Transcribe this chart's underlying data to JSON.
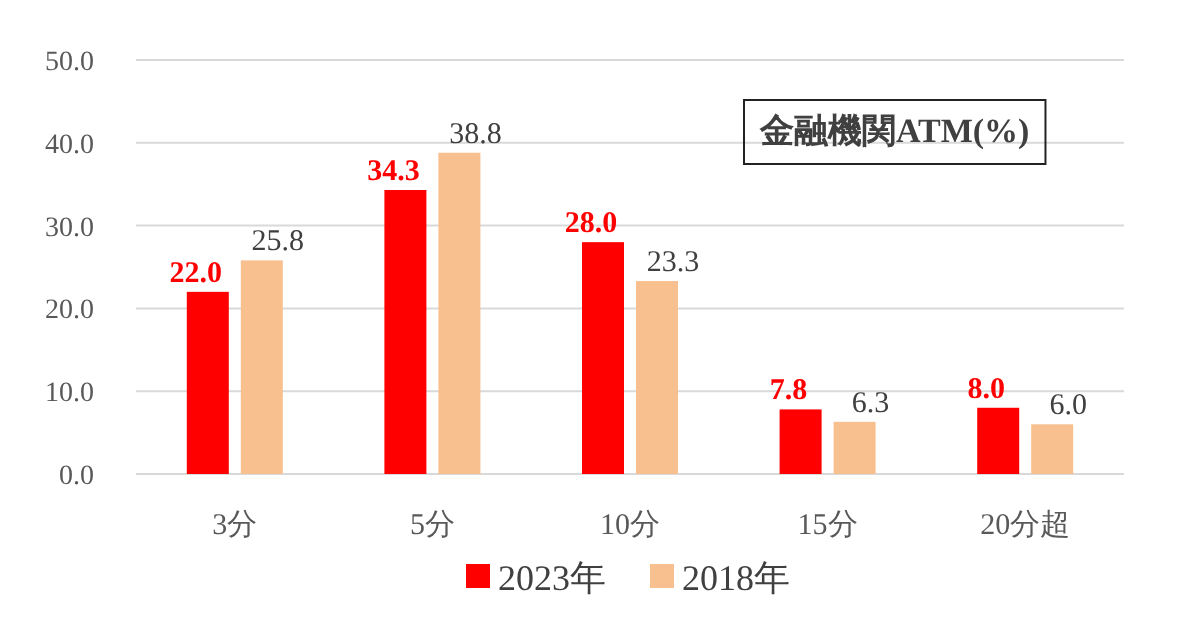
{
  "chart_data": {
    "type": "bar",
    "title": "金融機関ATM(%)",
    "categories": [
      "3分",
      "5分",
      "10分",
      "15分",
      "20分超"
    ],
    "series": [
      {
        "name": "2023年",
        "color": "#ff0000",
        "values": [
          22.0,
          34.3,
          28.0,
          7.8,
          8.0
        ],
        "value_labels": [
          "22.0",
          "34.3",
          "28.0",
          "7.8",
          "8.0"
        ]
      },
      {
        "name": "2018年",
        "color": "#f8c08e",
        "values": [
          25.8,
          38.8,
          23.3,
          6.3,
          6.0
        ],
        "value_labels": [
          "25.8",
          "38.8",
          "23.3",
          "6.3",
          "6.0"
        ]
      }
    ],
    "ylim": [
      0,
      50
    ],
    "yticks": [
      {
        "value": 0,
        "label": "0.0"
      },
      {
        "value": 10,
        "label": "10.0"
      },
      {
        "value": 20,
        "label": "20.0"
      },
      {
        "value": 30,
        "label": "30.0"
      },
      {
        "value": 40,
        "label": "40.0"
      },
      {
        "value": 50,
        "label": "50.0"
      }
    ],
    "grid": "y",
    "legend": "bottom"
  }
}
